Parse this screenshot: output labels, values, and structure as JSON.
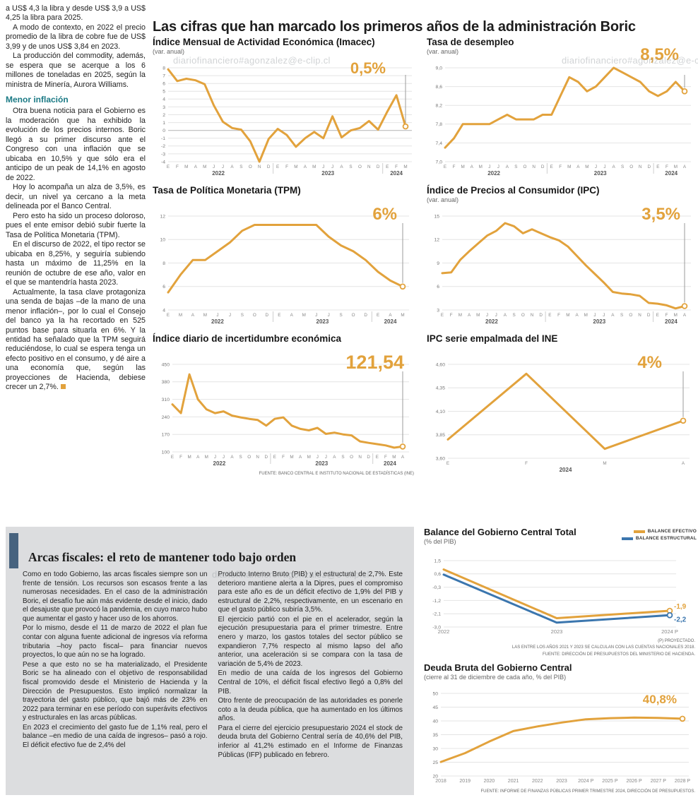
{
  "watermark": "diariofinanciero#agonzalez@e-clip.cl",
  "headline": "Las cifras que han marcado los primeros años de la administración Boric",
  "colors": {
    "orange": "#E2A23C",
    "blue": "#3B76AE",
    "subhead_teal": "#1B7A85",
    "accent_bar": "#47637F",
    "fiscal_bg": "#DCDDDF"
  },
  "article": {
    "p": [
      "a US$ 4,3 la libra y desde US$ 3,9 a US$ 4,25 la libra para 2025.",
      "A modo de contexto, en 2022 el precio promedio de la libra de cobre fue de US$ 3,99 y de unos US$ 3,84 en 2023.",
      "La producción del commodity, además, se espera que se acerque a los 6 millones de toneladas en 2025, según la ministra de Minería, Aurora Williams."
    ],
    "subhead": "Menor inflación",
    "q": [
      "Otra buena noticia para el Gobierno es la moderación que ha exhibido la evolución de los precios internos. Boric llegó a su primer discurso ante el Congreso con una inflación que se ubicaba en 10,5% y que sólo era el anticipo de un peak de 14,1% en agosto de 2022.",
      "Hoy lo acompaña un alza de 3,5%, es decir, un nivel ya cercano a la meta delineada por el Banco Central.",
      "Pero esto ha sido un proceso doloroso, pues el ente emisor debió subir fuerte la Tasa de Política Monetaria (TPM).",
      "En el discurso de 2022, el tipo rector se ubicaba en 8,25%, y seguiría subiendo hasta un máximo de 11,25% en la reunión de octubre de ese año, valor en el que se mantendría hasta 2023.",
      "Actualmente, la tasa clave protagoniza una senda de bajas –de la mano de una menor inflación–, por lo cual el Consejo del banco ya la ha recortado en 525 puntos base para situarla en 6%. Y la entidad ha señalado que la TPM seguirá reduciéndose, lo cual se espera tenga un efecto positivo en el consumo, y dé aire a una economía que, según las proyecciones de Hacienda, debiese crecer un 2,7%."
    ]
  },
  "fiscal": {
    "title": "Arcas fiscales: el reto de mantener todo bajo orden",
    "col1": [
      "Como en todo Gobierno, las arcas fiscales siempre son un frente de tensión. Los recursos son escasos frente a las numerosas necesidades. En el caso de la administración Boric, el desafío fue aún más evidente desde el inicio, dado el desajuste que provocó la pandemia, en cuyo marco hubo que aumentar el gasto y hacer uso de los ahorros.",
      "Por lo mismo, desde el 11 de marzo de 2022 el plan fue contar con alguna fuente adicional de ingresos vía reforma tributaria –hoy pacto fiscal– para financiar nuevos proyectos, lo que aún no se ha logrado.",
      "Pese a que esto no se ha materializado, el Presidente Boric se ha alineado con el objetivo de responsabilidad fiscal promovido desde el Ministerio de Hacienda y la Dirección de Presupuestos. Esto implicó normalizar la trayectoria del gasto público, que bajó más de 23% en 2022 para terminar en ese período con superávits efectivos y estructurales en las arcas públicas.",
      "En 2023 el crecimiento del gasto fue de 1,1% real, pero el balance –en medio de una caída de ingresos– pasó a rojo. El déficit efectivo fue de 2,4% del"
    ],
    "col2": [
      "Producto Interno Bruto (PIB) y el estructural de 2,7%. Este deterioro mantiene alerta a la Dipres, pues el compromiso para este año es de un déficit efectivo de 1,9% del PIB y estructural de 2,2%, respectivamente, en un escenario en que el gasto público subiría 3,5%.",
      "El ejercicio partió con el pie en el acelerador, según la ejecución presupuestaria para el primer trimestre. Entre enero y marzo, los gastos totales del sector público se expandieron 7,7% respecto al mismo lapso del año anterior, una aceleración si se compara con la tasa de variación de 5,4% de 2023.",
      "En medio de una caída de los ingresos del Gobierno Central de 10%, el déficit fiscal efectivo llegó a 0,8% del PIB.",
      "Otro frente de preocupación de las autoridades es ponerle coto a la deuda pública, que ha aumentado en los últimos años.",
      "Para el cierre del ejercicio presupuestario 2024 el stock de deuda bruta del Gobierno Central sería de 40,6% del PIB, inferior al 41,2% estimado en el Informe de Finanzas Públicas (IFP) publicado en febrero."
    ]
  },
  "chart_data": [
    {
      "type": "line",
      "title": "Índice Mensual de Actividad Económica (Imacec)",
      "subtitle": "(var. anual)",
      "callout": "0,5%",
      "color": "#E2A23C",
      "ylim": [
        -4,
        8
      ],
      "yticks": [
        8,
        7,
        6,
        5,
        4,
        3,
        2,
        1,
        0,
        -1,
        -2,
        -3,
        -4
      ],
      "ytick_labels": [
        "8",
        "7",
        "6",
        "5",
        "4",
        "3",
        "2",
        "1",
        "0",
        "-1",
        "-2",
        "-3",
        "-4"
      ],
      "x_labels": [
        "E",
        "F",
        "M",
        "A",
        "M",
        "J",
        "J",
        "A",
        "S",
        "O",
        "N",
        "D",
        "E",
        "F",
        "M",
        "A",
        "M",
        "J",
        "J",
        "A",
        "S",
        "O",
        "N",
        "D",
        "E",
        "F",
        "M"
      ],
      "years": [
        {
          "label": "2022",
          "from": 0,
          "to": 11
        },
        {
          "label": "2023",
          "from": 12,
          "to": 23
        },
        {
          "label": "2024",
          "from": 24,
          "to": 26
        }
      ],
      "values": [
        7.8,
        6.3,
        6.6,
        6.4,
        5.9,
        3.2,
        1.1,
        0.3,
        0.1,
        -1.4,
        -4.0,
        -1.1,
        0.2,
        -0.6,
        -2.1,
        -1.0,
        -0.2,
        -1.0,
        1.8,
        -0.9,
        0.0,
        0.3,
        1.2,
        0.1,
        2.4,
        4.5,
        0.5
      ]
    },
    {
      "type": "line",
      "title": "Tasa de desempleo",
      "subtitle": "(var. anual)",
      "callout": "8,5%",
      "color": "#E2A23C",
      "ylim": [
        7.0,
        9.0
      ],
      "yticks": [
        9.0,
        8.6,
        8.2,
        7.8,
        7.4,
        7.0
      ],
      "ytick_labels": [
        "9,0",
        "8,6",
        "8,2",
        "7,8",
        "7,4",
        "7,0"
      ],
      "x_labels": [
        "E",
        "F",
        "M",
        "A",
        "M",
        "J",
        "J",
        "A",
        "S",
        "O",
        "N",
        "D",
        "E",
        "F",
        "M",
        "A",
        "M",
        "J",
        "J",
        "A",
        "S",
        "O",
        "N",
        "D",
        "E",
        "F",
        "M",
        "A"
      ],
      "years": [
        {
          "label": "2022",
          "from": 0,
          "to": 11
        },
        {
          "label": "2023",
          "from": 12,
          "to": 23
        },
        {
          "label": "2024",
          "from": 24,
          "to": 27
        }
      ],
      "values": [
        7.3,
        7.5,
        7.8,
        7.8,
        7.8,
        7.8,
        7.9,
        8.0,
        7.9,
        7.9,
        7.9,
        8.0,
        8.0,
        8.4,
        8.8,
        8.7,
        8.5,
        8.6,
        8.8,
        9.0,
        8.9,
        8.8,
        8.7,
        8.5,
        8.4,
        8.5,
        8.7,
        8.5
      ]
    },
    {
      "type": "line",
      "title": "Tasa de Política Monetaria (TPM)",
      "subtitle": "",
      "callout": "6%",
      "color": "#E2A23C",
      "ylim": [
        4,
        12
      ],
      "yticks": [
        12,
        10,
        8,
        6,
        4
      ],
      "ytick_labels": [
        "12",
        "10",
        "8",
        "6",
        "4"
      ],
      "x_labels": [
        "E",
        "M",
        "A",
        "M",
        "J",
        "J",
        "S",
        "O",
        "D",
        "E",
        "A",
        "M",
        "J",
        "J",
        "S",
        "O",
        "D",
        "E",
        "A",
        "M"
      ],
      "years": [
        {
          "label": "2022",
          "from": 0,
          "to": 8
        },
        {
          "label": "2023",
          "from": 9,
          "to": 16
        },
        {
          "label": "2024",
          "from": 17,
          "to": 19
        }
      ],
      "values": [
        5.5,
        7.0,
        8.25,
        8.25,
        9.0,
        9.75,
        10.75,
        11.25,
        11.25,
        11.25,
        11.25,
        11.25,
        11.25,
        10.25,
        9.5,
        9.0,
        8.25,
        7.25,
        6.5,
        6.0
      ]
    },
    {
      "type": "line",
      "title": "Índice de Precios al Consumidor (IPC)",
      "subtitle": "(var. anual)",
      "callout": "3,5%",
      "color": "#E2A23C",
      "ylim": [
        3,
        15
      ],
      "yticks": [
        15,
        12,
        9,
        6,
        3
      ],
      "ytick_labels": [
        "15",
        "12",
        "9",
        "6",
        "3"
      ],
      "x_labels": [
        "E",
        "F",
        "M",
        "A",
        "M",
        "J",
        "J",
        "A",
        "S",
        "O",
        "N",
        "D",
        "E",
        "F",
        "M",
        "A",
        "M",
        "J",
        "J",
        "A",
        "S",
        "O",
        "N",
        "D",
        "E",
        "F",
        "M",
        "A"
      ],
      "years": [
        {
          "label": "2022",
          "from": 0,
          "to": 11
        },
        {
          "label": "2023",
          "from": 12,
          "to": 23
        },
        {
          "label": "2024",
          "from": 24,
          "to": 27
        }
      ],
      "values": [
        7.7,
        7.8,
        9.4,
        10.5,
        11.5,
        12.5,
        13.1,
        14.1,
        13.7,
        12.8,
        13.3,
        12.8,
        12.3,
        11.9,
        11.1,
        9.9,
        8.7,
        7.6,
        6.5,
        5.3,
        5.1,
        5.0,
        4.8,
        3.9,
        3.8,
        3.6,
        3.2,
        3.5
      ]
    },
    {
      "type": "line",
      "title": "Índice diario de incertidumbre económica",
      "subtitle": "",
      "callout": "121,54",
      "color": "#E2A23C",
      "ylim": [
        100,
        450
      ],
      "yticks": [
        450,
        380,
        310,
        240,
        170,
        100
      ],
      "ytick_labels": [
        "450",
        "380",
        "310",
        "240",
        "170",
        "100"
      ],
      "x_labels": [
        "E",
        "F",
        "M",
        "A",
        "M",
        "J",
        "J",
        "A",
        "S",
        "O",
        "N",
        "D",
        "E",
        "F",
        "M",
        "A",
        "M",
        "J",
        "J",
        "A",
        "S",
        "O",
        "N",
        "D",
        "E",
        "F",
        "M",
        "A"
      ],
      "years": [
        {
          "label": "2022",
          "from": 0,
          "to": 11
        },
        {
          "label": "2023",
          "from": 12,
          "to": 23
        },
        {
          "label": "2024",
          "from": 24,
          "to": 27
        }
      ],
      "values": [
        290,
        255,
        410,
        310,
        270,
        255,
        262,
        245,
        238,
        232,
        228,
        205,
        232,
        238,
        205,
        192,
        186,
        196,
        172,
        177,
        170,
        166,
        142,
        136,
        131,
        126,
        117,
        121.54
      ],
      "source": "FUENTE: BANCO CENTRAL E INSTITUTO NACIONAL DE ESTADÍSTICAS (INE)"
    },
    {
      "type": "line",
      "title": "IPC serie empalmada del INE",
      "subtitle": "",
      "callout": "4%",
      "color": "#E2A23C",
      "ylim": [
        3.6,
        4.6
      ],
      "yticks": [
        4.6,
        4.35,
        4.1,
        3.85,
        3.6
      ],
      "ytick_labels": [
        "4,60",
        "4,35",
        "4,10",
        "3,85",
        "3,60"
      ],
      "x_labels": [
        "E",
        "F",
        "M",
        "A"
      ],
      "years": [
        {
          "label": "2024",
          "from": 0,
          "to": 3
        }
      ],
      "values": [
        3.8,
        4.5,
        3.7,
        4.0
      ]
    },
    {
      "type": "line",
      "title": "Balance del Gobierno Central Total",
      "subtitle": "(% del PIB)",
      "ylim": [
        -3.0,
        1.5
      ],
      "yticks": [
        1.5,
        0.6,
        -0.3,
        -1.2,
        -2.1,
        -3.0
      ],
      "ytick_labels": [
        "1,5",
        "0,6",
        "-0,3",
        "-1,2",
        "-2,1",
        "-3,0"
      ],
      "x_labels": [
        "2022",
        "2023",
        "2024 P"
      ],
      "series": [
        {
          "name": "BALANCE EFECTIVO",
          "color": "#E2A23C",
          "values": [
            0.9,
            -2.4,
            -1.9
          ],
          "end_label": "-1,9"
        },
        {
          "name": "BALANCE ESTRUCTURAL",
          "color": "#3B76AE",
          "values": [
            0.55,
            -2.7,
            -2.2
          ],
          "end_label": "-2,2"
        }
      ],
      "notes": [
        "(P) PROYECTADO.",
        "LAS ENTRE LOS AÑOS 2021 Y 2023 SE CALCULAN  CON LAS CUENTAS NACIONALES 2018.",
        "FUENTE: DIRECCIÓN DE PRESUPUESTOS DEL MINISTERIO DE HACIENDA."
      ]
    },
    {
      "type": "line",
      "title": "Deuda Bruta del Gobierno Central",
      "subtitle": "(cierre al 31 de diciembre de cada año, % del PIB)",
      "callout": "40,8%",
      "color": "#E2A23C",
      "ylim": [
        20,
        50
      ],
      "yticks": [
        50,
        45,
        40,
        35,
        30,
        25,
        20
      ],
      "ytick_labels": [
        "50",
        "45",
        "40",
        "35",
        "30",
        "25",
        "20"
      ],
      "x_labels": [
        "2018",
        "2019",
        "2020",
        "2021",
        "2022",
        "2023",
        "2024 P",
        "2025 P",
        "2026 P",
        "2027 P",
        "2028 P"
      ],
      "values": [
        25.1,
        28.3,
        32.5,
        36.3,
        38.0,
        39.4,
        40.6,
        41.0,
        41.2,
        41.1,
        40.8
      ],
      "source": "FUENTE: INFORME DE FINANZAS PÚBLICAS PRIMER TRIMESTRE 2024, DIRECCIÓN DE PRESUPUESTOS."
    }
  ]
}
